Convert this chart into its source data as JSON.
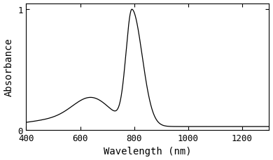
{
  "title": "",
  "xlabel": "Wavelength (nm)",
  "ylabel": "Absorbance",
  "xlim": [
    400,
    1300
  ],
  "ylim": [
    0,
    1.05
  ],
  "xticks": [
    400,
    600,
    800,
    1000,
    1200
  ],
  "yticks": [
    0,
    1
  ],
  "peak_wavelength": 792,
  "line_color": "#000000",
  "background_color": "#ffffff",
  "tick_label_fontsize": 9,
  "axis_label_fontsize": 10
}
